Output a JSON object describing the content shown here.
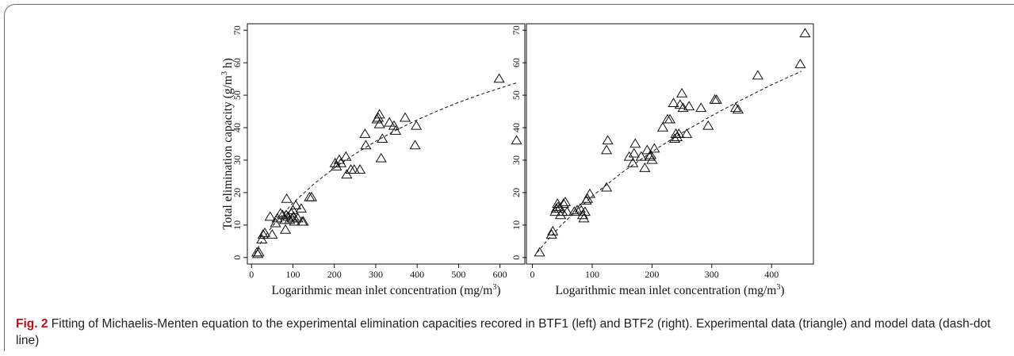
{
  "caption": {
    "label": "Fig. 2",
    "text": " Fitting of Michaelis-Menten equation to the experimental elimination capacities recored in BTF1 (left) and BTF2 (right). Experimental data (triangle) and model data (dash-dot line)"
  },
  "colors": {
    "caption_label": "#b5121b",
    "marker": "#111111",
    "fit_line": "#111111"
  },
  "chart_data": [
    {
      "type": "scatter",
      "panel": "left",
      "ylabel_main": "Total elimination capacity (g/m",
      "ylabel_sup": "3",
      "ylabel_end": " h)",
      "xlabel_main": "Logarithmic mean inlet concentration (mg/m",
      "xlabel_sup": "3",
      "xlabel_end": ")",
      "xlim": [
        -10,
        660
      ],
      "ylim": [
        -2,
        72
      ],
      "xticks": [
        0,
        100,
        200,
        300,
        400,
        500,
        600
      ],
      "yticks": [
        0,
        10,
        20,
        30,
        40,
        50,
        60,
        70
      ],
      "grid": false,
      "series": [
        {
          "marker": "triangle-open",
          "points": [
            [
              13,
              1.5
            ],
            [
              15,
              1
            ],
            [
              18,
              1.5
            ],
            [
              25,
              5.5
            ],
            [
              28,
              7
            ],
            [
              32,
              7.5
            ],
            [
              45,
              12.5
            ],
            [
              50,
              7
            ],
            [
              58,
              10.5
            ],
            [
              62,
              12
            ],
            [
              70,
              13.5
            ],
            [
              75,
              13
            ],
            [
              80,
              11.5
            ],
            [
              82,
              8.5
            ],
            [
              84,
              13
            ],
            [
              85,
              18
            ],
            [
              88,
              12.5
            ],
            [
              92,
              11.5
            ],
            [
              96,
              13.5
            ],
            [
              98,
              12
            ],
            [
              100,
              14.5
            ],
            [
              102,
              12.5
            ],
            [
              104,
              11
            ],
            [
              107,
              16
            ],
            [
              112,
              12
            ],
            [
              120,
              15
            ],
            [
              122,
              11
            ],
            [
              125,
              11
            ],
            [
              140,
              18.5
            ],
            [
              145,
              18.5
            ],
            [
              202,
              29
            ],
            [
              205,
              28
            ],
            [
              212,
              30
            ],
            [
              216,
              29
            ],
            [
              228,
              31
            ],
            [
              230,
              25.5
            ],
            [
              240,
              27
            ],
            [
              248,
              27
            ],
            [
              262,
              27
            ],
            [
              274,
              38
            ],
            [
              276,
              34.5
            ],
            [
              303,
              42.5
            ],
            [
              306,
              43
            ],
            [
              309,
              44
            ],
            [
              309,
              41
            ],
            [
              313,
              30.5
            ],
            [
              316,
              36.5
            ],
            [
              333,
              41.5
            ],
            [
              344,
              40.5
            ],
            [
              348,
              39
            ],
            [
              371,
              43
            ],
            [
              395,
              34.5
            ],
            [
              398,
              40.5
            ],
            [
              598,
              55
            ],
            [
              640,
              36
            ]
          ]
        },
        {
          "name": "",
          "line": "dash-dot",
          "fit": [
            [
              8,
              1.2
            ],
            [
              25,
              5.1
            ],
            [
              50,
              9.6
            ],
            [
              100,
              16.8
            ],
            [
              150,
              22.6
            ],
            [
              200,
              27.6
            ],
            [
              250,
              31.9
            ],
            [
              300,
              35.8
            ],
            [
              350,
              39.3
            ],
            [
              400,
              42.4
            ],
            [
              450,
              45.2
            ],
            [
              500,
              47.8
            ],
            [
              550,
              50.1
            ],
            [
              600,
              52.2
            ],
            [
              640,
              53.8
            ]
          ]
        }
      ]
    },
    {
      "type": "scatter",
      "panel": "right",
      "ylabel_main": "",
      "xlabel_main": "Logarithmic mean inlet concentration (mg/m",
      "xlabel_sup": "3",
      "xlabel_end": ")",
      "xlim": [
        -10,
        470
      ],
      "ylim": [
        -2,
        72
      ],
      "xticks": [
        0,
        100,
        200,
        300,
        400
      ],
      "yticks": [
        0,
        10,
        20,
        30,
        40,
        50,
        60,
        70
      ],
      "grid": false,
      "series": [
        {
          "marker": "triangle-open",
          "points": [
            [
              12,
              1.5
            ],
            [
              32,
              7
            ],
            [
              34,
              8
            ],
            [
              38,
              14
            ],
            [
              40,
              15
            ],
            [
              42,
              16.5
            ],
            [
              43,
              15.5
            ],
            [
              45,
              15
            ],
            [
              47,
              13
            ],
            [
              50,
              14
            ],
            [
              52,
              16.5
            ],
            [
              55,
              17
            ],
            [
              58,
              14
            ],
            [
              70,
              14
            ],
            [
              75,
              14.5
            ],
            [
              80,
              15
            ],
            [
              84,
              13
            ],
            [
              86,
              12
            ],
            [
              88,
              14
            ],
            [
              90,
              17.5
            ],
            [
              92,
              18
            ],
            [
              96,
              19.5
            ],
            [
              124,
              21.5
            ],
            [
              124,
              33
            ],
            [
              126,
              36
            ],
            [
              162,
              31
            ],
            [
              168,
              29
            ],
            [
              170,
              32
            ],
            [
              172,
              35
            ],
            [
              182,
              31
            ],
            [
              188,
              27.5
            ],
            [
              192,
              33
            ],
            [
              196,
              31
            ],
            [
              198,
              31.5
            ],
            [
              200,
              30
            ],
            [
              204,
              33.5
            ],
            [
              218,
              40
            ],
            [
              226,
              42.5
            ],
            [
              230,
              42.5
            ],
            [
              236,
              47.5
            ],
            [
              238,
              36.5
            ],
            [
              240,
              38
            ],
            [
              242,
              37
            ],
            [
              245,
              38
            ],
            [
              247,
              47
            ],
            [
              250,
              50.5
            ],
            [
              252,
              46
            ],
            [
              258,
              38
            ],
            [
              262,
              46.5
            ],
            [
              282,
              46
            ],
            [
              294,
              40.5
            ],
            [
              305,
              48.5
            ],
            [
              308,
              48.5
            ],
            [
              340,
              46
            ],
            [
              344,
              45.5
            ],
            [
              377,
              56
            ],
            [
              448,
              59.5
            ],
            [
              456,
              69
            ]
          ]
        },
        {
          "name": "",
          "line": "dash-dot",
          "fit": [
            [
              8,
              1.6
            ],
            [
              25,
              5.3
            ],
            [
              50,
              10.3
            ],
            [
              100,
              18.9
            ],
            [
              150,
              26.2
            ],
            [
              200,
              32.6
            ],
            [
              250,
              38.4
            ],
            [
              300,
              43.7
            ],
            [
              350,
              48.6
            ],
            [
              400,
              53.2
            ],
            [
              450,
              57.4
            ]
          ]
        }
      ]
    }
  ]
}
